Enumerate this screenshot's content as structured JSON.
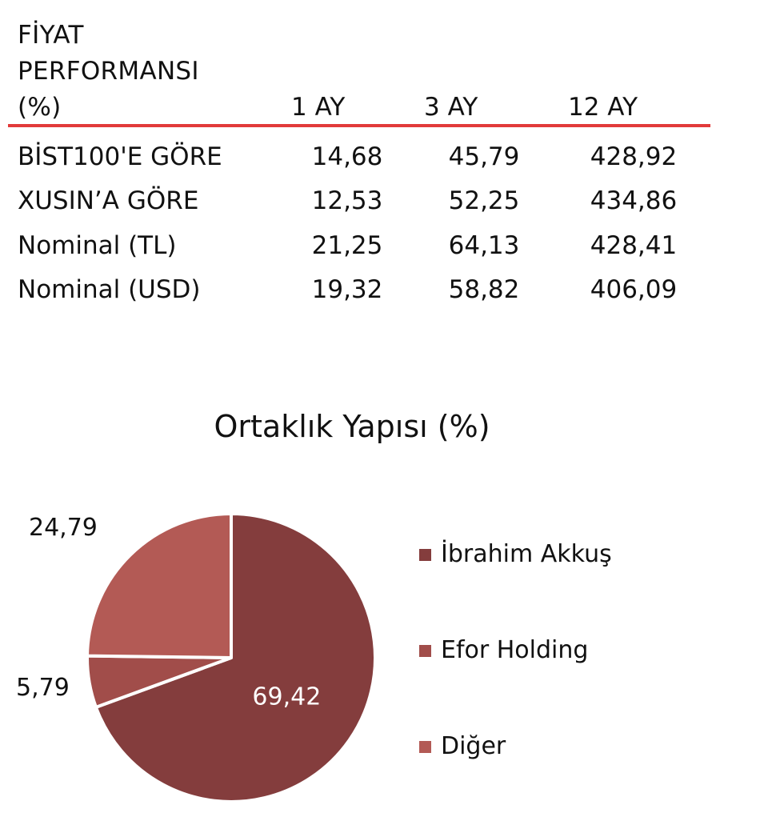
{
  "table": {
    "header_lines": [
      "FİYAT",
      "PERFORMANSI",
      "(%)"
    ],
    "columns": [
      "1 AY",
      "3 AY",
      "12 AY"
    ],
    "rows": [
      {
        "label": "BİST100'E GÖRE",
        "values": [
          "14,68",
          "45,79",
          "428,92"
        ]
      },
      {
        "label": "XUSIN’A GÖRE",
        "values": [
          "12,53",
          "52,25",
          "434,86"
        ]
      },
      {
        "label": "Nominal (TL)",
        "values": [
          "21,25",
          "64,13",
          "428,41"
        ]
      },
      {
        "label": "Nominal (USD)",
        "values": [
          "19,32",
          "58,82",
          "406,09"
        ]
      }
    ],
    "rule_color": "#e23a3a"
  },
  "chart_data": {
    "type": "pie",
    "title": "Ortaklık Yapısı (%)",
    "categories": [
      "İbrahim Akkuş",
      "Efor Holding",
      "Diğer"
    ],
    "values": [
      69.42,
      5.79,
      24.79
    ],
    "value_labels": [
      "69,42",
      "5,79",
      "24,79"
    ],
    "colors": [
      "#843d3d",
      "#a14d4a",
      "#b35a55"
    ],
    "legend_position": "right"
  }
}
